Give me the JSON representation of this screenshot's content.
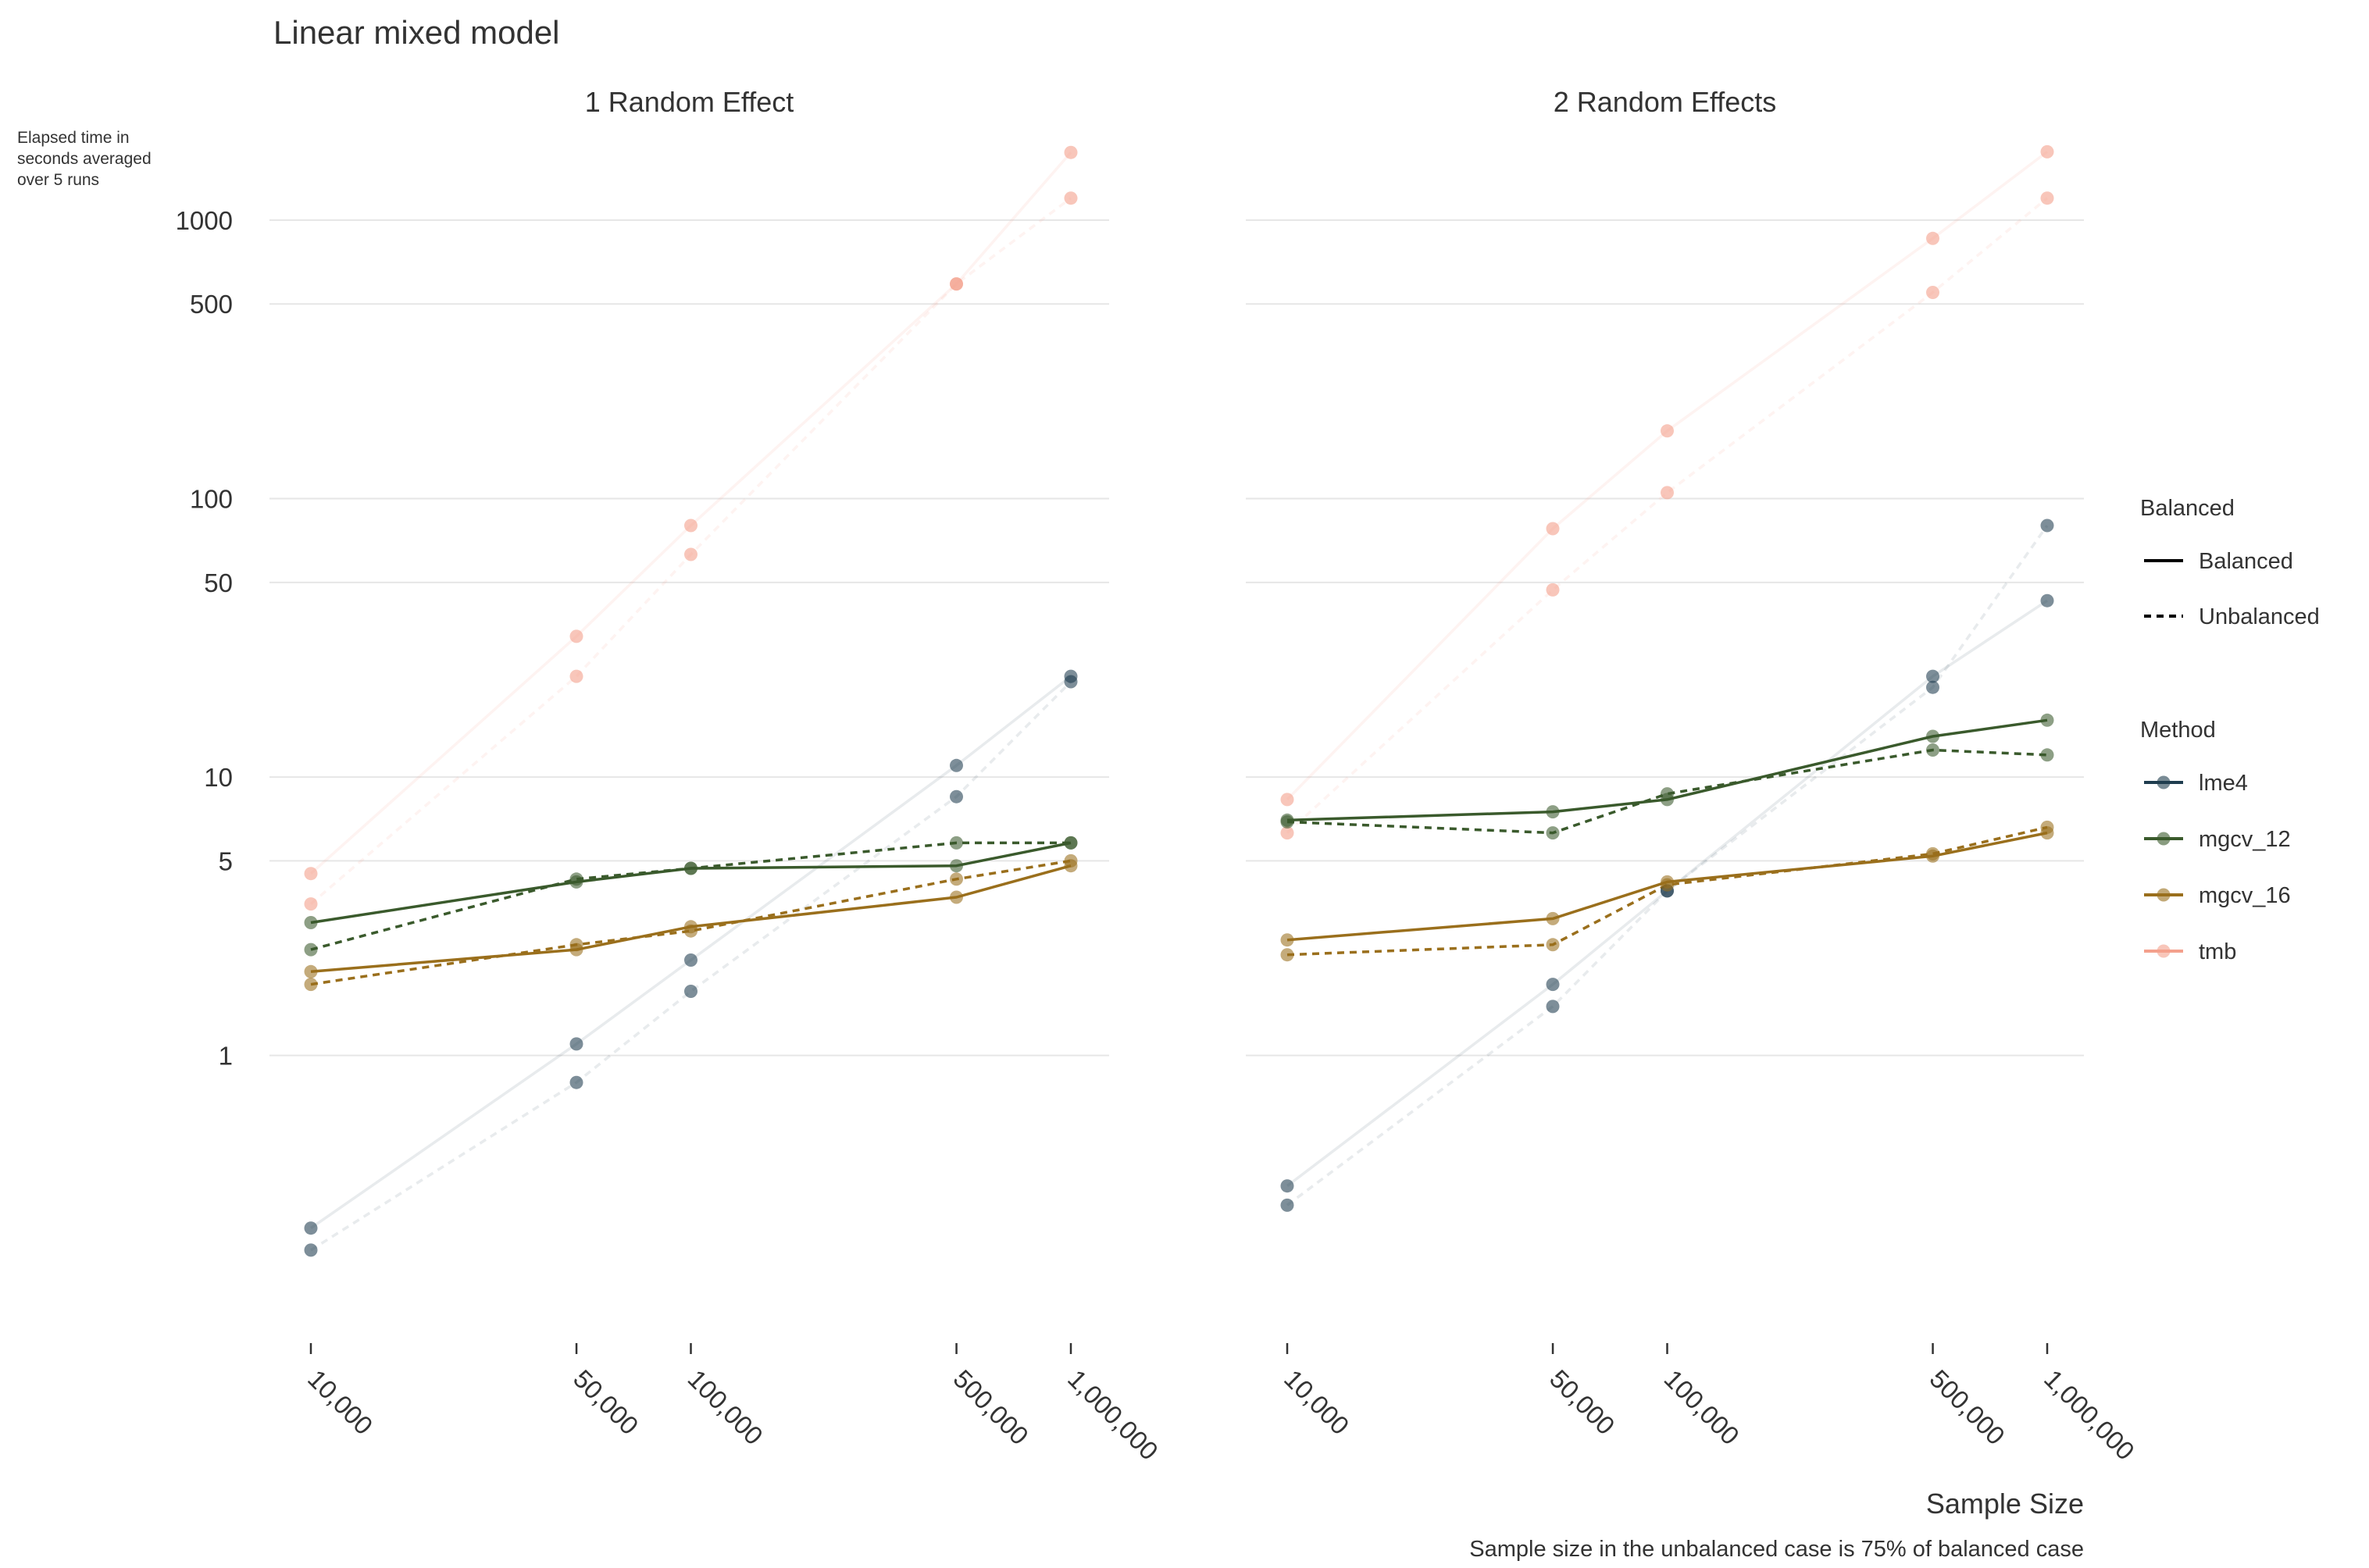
{
  "chart_data": {
    "type": "line",
    "title": "Linear mixed model",
    "ylabel": "Elapsed time in seconds averaged over 5 runs",
    "ylabel_lines": [
      "Elapsed time in",
      "seconds averaged",
      "over 5 runs"
    ],
    "xlabel": "Sample Size",
    "caption": "Sample size in the unbalanced case is 75% of balanced case",
    "x_scale": "log",
    "y_scale": "log",
    "ylim": [
      0.12,
      2500
    ],
    "x": [
      10000,
      50000,
      100000,
      500000,
      1000000
    ],
    "x_tick_labels": [
      "10,000",
      "50,000",
      "100,000",
      "500,000",
      "1,000,000"
    ],
    "y_ticks": [
      1,
      5,
      10,
      50,
      100,
      500,
      1000
    ],
    "y_tick_labels": [
      "1",
      "5",
      "10",
      "50",
      "100",
      "500",
      "1000"
    ],
    "grid": true,
    "legend_position": "right",
    "legend": {
      "balanced_title": "Balanced",
      "balanced_items": [
        {
          "label": "Balanced",
          "dash": "solid"
        },
        {
          "label": "Unbalanced",
          "dash": "dashed"
        }
      ],
      "method_title": "Method",
      "method_items": [
        {
          "label": "lme4",
          "color": "#1f3d4f"
        },
        {
          "label": "mgcv_12",
          "color": "#3a5a2c"
        },
        {
          "label": "mgcv_16",
          "color": "#9a6f1c"
        },
        {
          "label": "tmb",
          "color": "#f4a08c"
        }
      ]
    },
    "colors": {
      "lme4": "#1f3d4f",
      "mgcv_12": "#3a5a2c",
      "mgcv_16": "#9a6f1c",
      "tmb": "#f4a08c",
      "grid": "#e6e6e6",
      "text": "#333333"
    },
    "panels": [
      {
        "title": "1 Random Effect",
        "series": [
          {
            "method": "lme4",
            "balanced": "Balanced",
            "values": [
              0.24,
              1.1,
              2.2,
              11,
              23
            ]
          },
          {
            "method": "lme4",
            "balanced": "Unbalanced",
            "values": [
              0.2,
              0.8,
              1.7,
              8.5,
              22
            ]
          },
          {
            "method": "mgcv_12",
            "balanced": "Balanced",
            "values": [
              3.0,
              4.2,
              4.7,
              4.8,
              5.8
            ]
          },
          {
            "method": "mgcv_12",
            "balanced": "Unbalanced",
            "values": [
              2.4,
              4.3,
              4.7,
              5.8,
              5.8
            ]
          },
          {
            "method": "mgcv_16",
            "balanced": "Balanced",
            "values": [
              2.0,
              2.4,
              2.9,
              3.7,
              4.8
            ]
          },
          {
            "method": "mgcv_16",
            "balanced": "Unbalanced",
            "values": [
              1.8,
              2.5,
              2.8,
              4.3,
              5.0
            ]
          },
          {
            "method": "tmb",
            "balanced": "Balanced",
            "values": [
              4.5,
              32,
              80,
              590,
              1750
            ]
          },
          {
            "method": "tmb",
            "balanced": "Unbalanced",
            "values": [
              3.5,
              23,
              63,
              590,
              1200
            ]
          }
        ]
      },
      {
        "title": "2 Random Effects",
        "series": [
          {
            "method": "lme4",
            "balanced": "Balanced",
            "values": [
              0.34,
              1.8,
              3.9,
              23,
              43
            ]
          },
          {
            "method": "lme4",
            "balanced": "Unbalanced",
            "values": [
              0.29,
              1.5,
              3.9,
              21,
              80
            ]
          },
          {
            "method": "mgcv_12",
            "balanced": "Balanced",
            "values": [
              7.0,
              7.5,
              8.3,
              14,
              16
            ]
          },
          {
            "method": "mgcv_12",
            "balanced": "Unbalanced",
            "values": [
              6.9,
              6.3,
              8.7,
              12.5,
              12
            ]
          },
          {
            "method": "mgcv_16",
            "balanced": "Balanced",
            "values": [
              2.6,
              3.1,
              4.2,
              5.2,
              6.3
            ]
          },
          {
            "method": "mgcv_16",
            "balanced": "Unbalanced",
            "values": [
              2.3,
              2.5,
              4.1,
              5.3,
              6.6
            ]
          },
          {
            "method": "tmb",
            "balanced": "Balanced",
            "values": [
              8.3,
              78,
              175,
              860,
              1760
            ]
          },
          {
            "method": "tmb",
            "balanced": "Unbalanced",
            "values": [
              6.3,
              47,
              105,
              550,
              1200
            ]
          }
        ]
      }
    ]
  }
}
